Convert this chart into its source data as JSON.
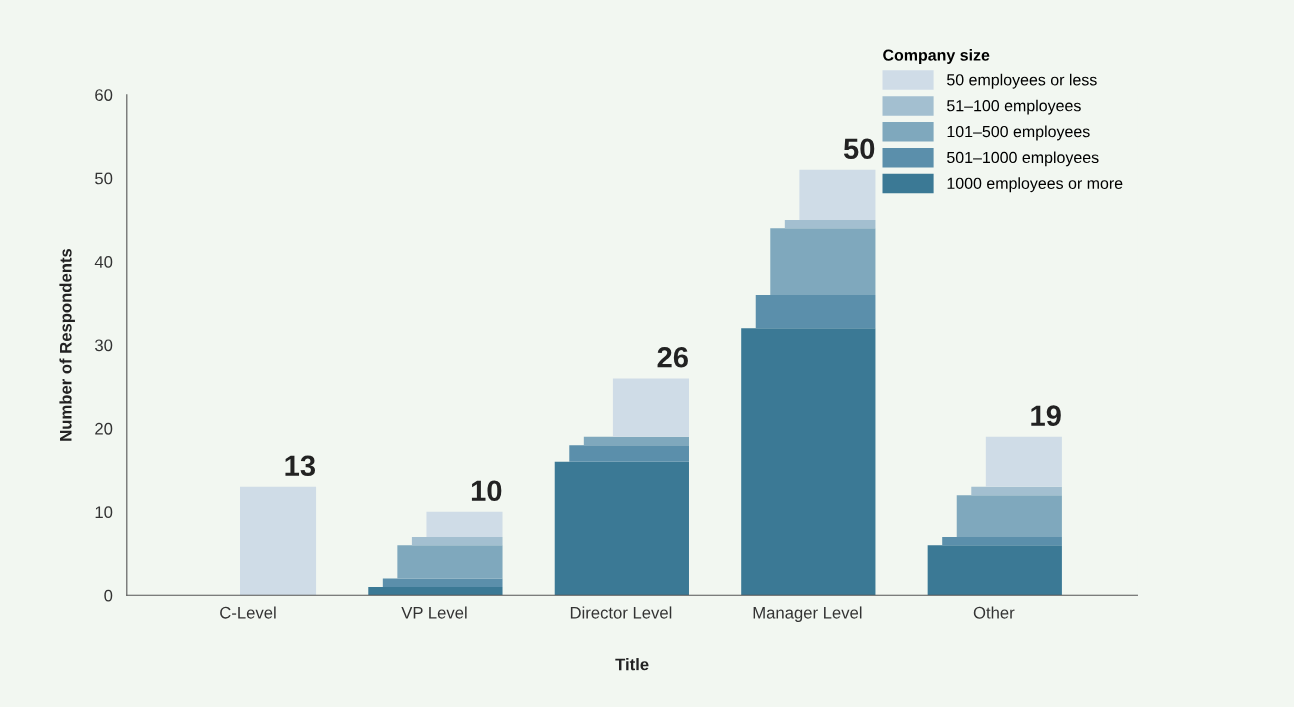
{
  "chart_data": {
    "type": "bar",
    "stacked": true,
    "xlabel": "Title",
    "ylabel": "Number of Respondents",
    "legend_title": "Company size",
    "categories": [
      "C-Level",
      "VP Level",
      "Director Level",
      "Manager Level",
      "Other"
    ],
    "series": [
      {
        "name": "1000 employees or more",
        "color": "#3b7995",
        "values": [
          0,
          1,
          16,
          32,
          6
        ]
      },
      {
        "name": "501–1000 employees",
        "color": "#5b8fab",
        "values": [
          0,
          1,
          2,
          4,
          1
        ]
      },
      {
        "name": "101–500 employees",
        "color": "#7fa8bd",
        "values": [
          0,
          4,
          1,
          8,
          5
        ]
      },
      {
        "name": "51–100 employees",
        "color": "#a3bfd0",
        "values": [
          0,
          1,
          0,
          1,
          1
        ]
      },
      {
        "name": "50 employees or less",
        "color": "#cfdce7",
        "values": [
          13,
          3,
          7,
          6,
          6
        ]
      }
    ],
    "totals": [
      "13",
      "10",
      "26",
      "50",
      "19"
    ],
    "ylim": [
      0,
      60
    ],
    "yticks": [
      0,
      10,
      20,
      30,
      40,
      50,
      60
    ],
    "grid": false,
    "legend": "top right"
  }
}
